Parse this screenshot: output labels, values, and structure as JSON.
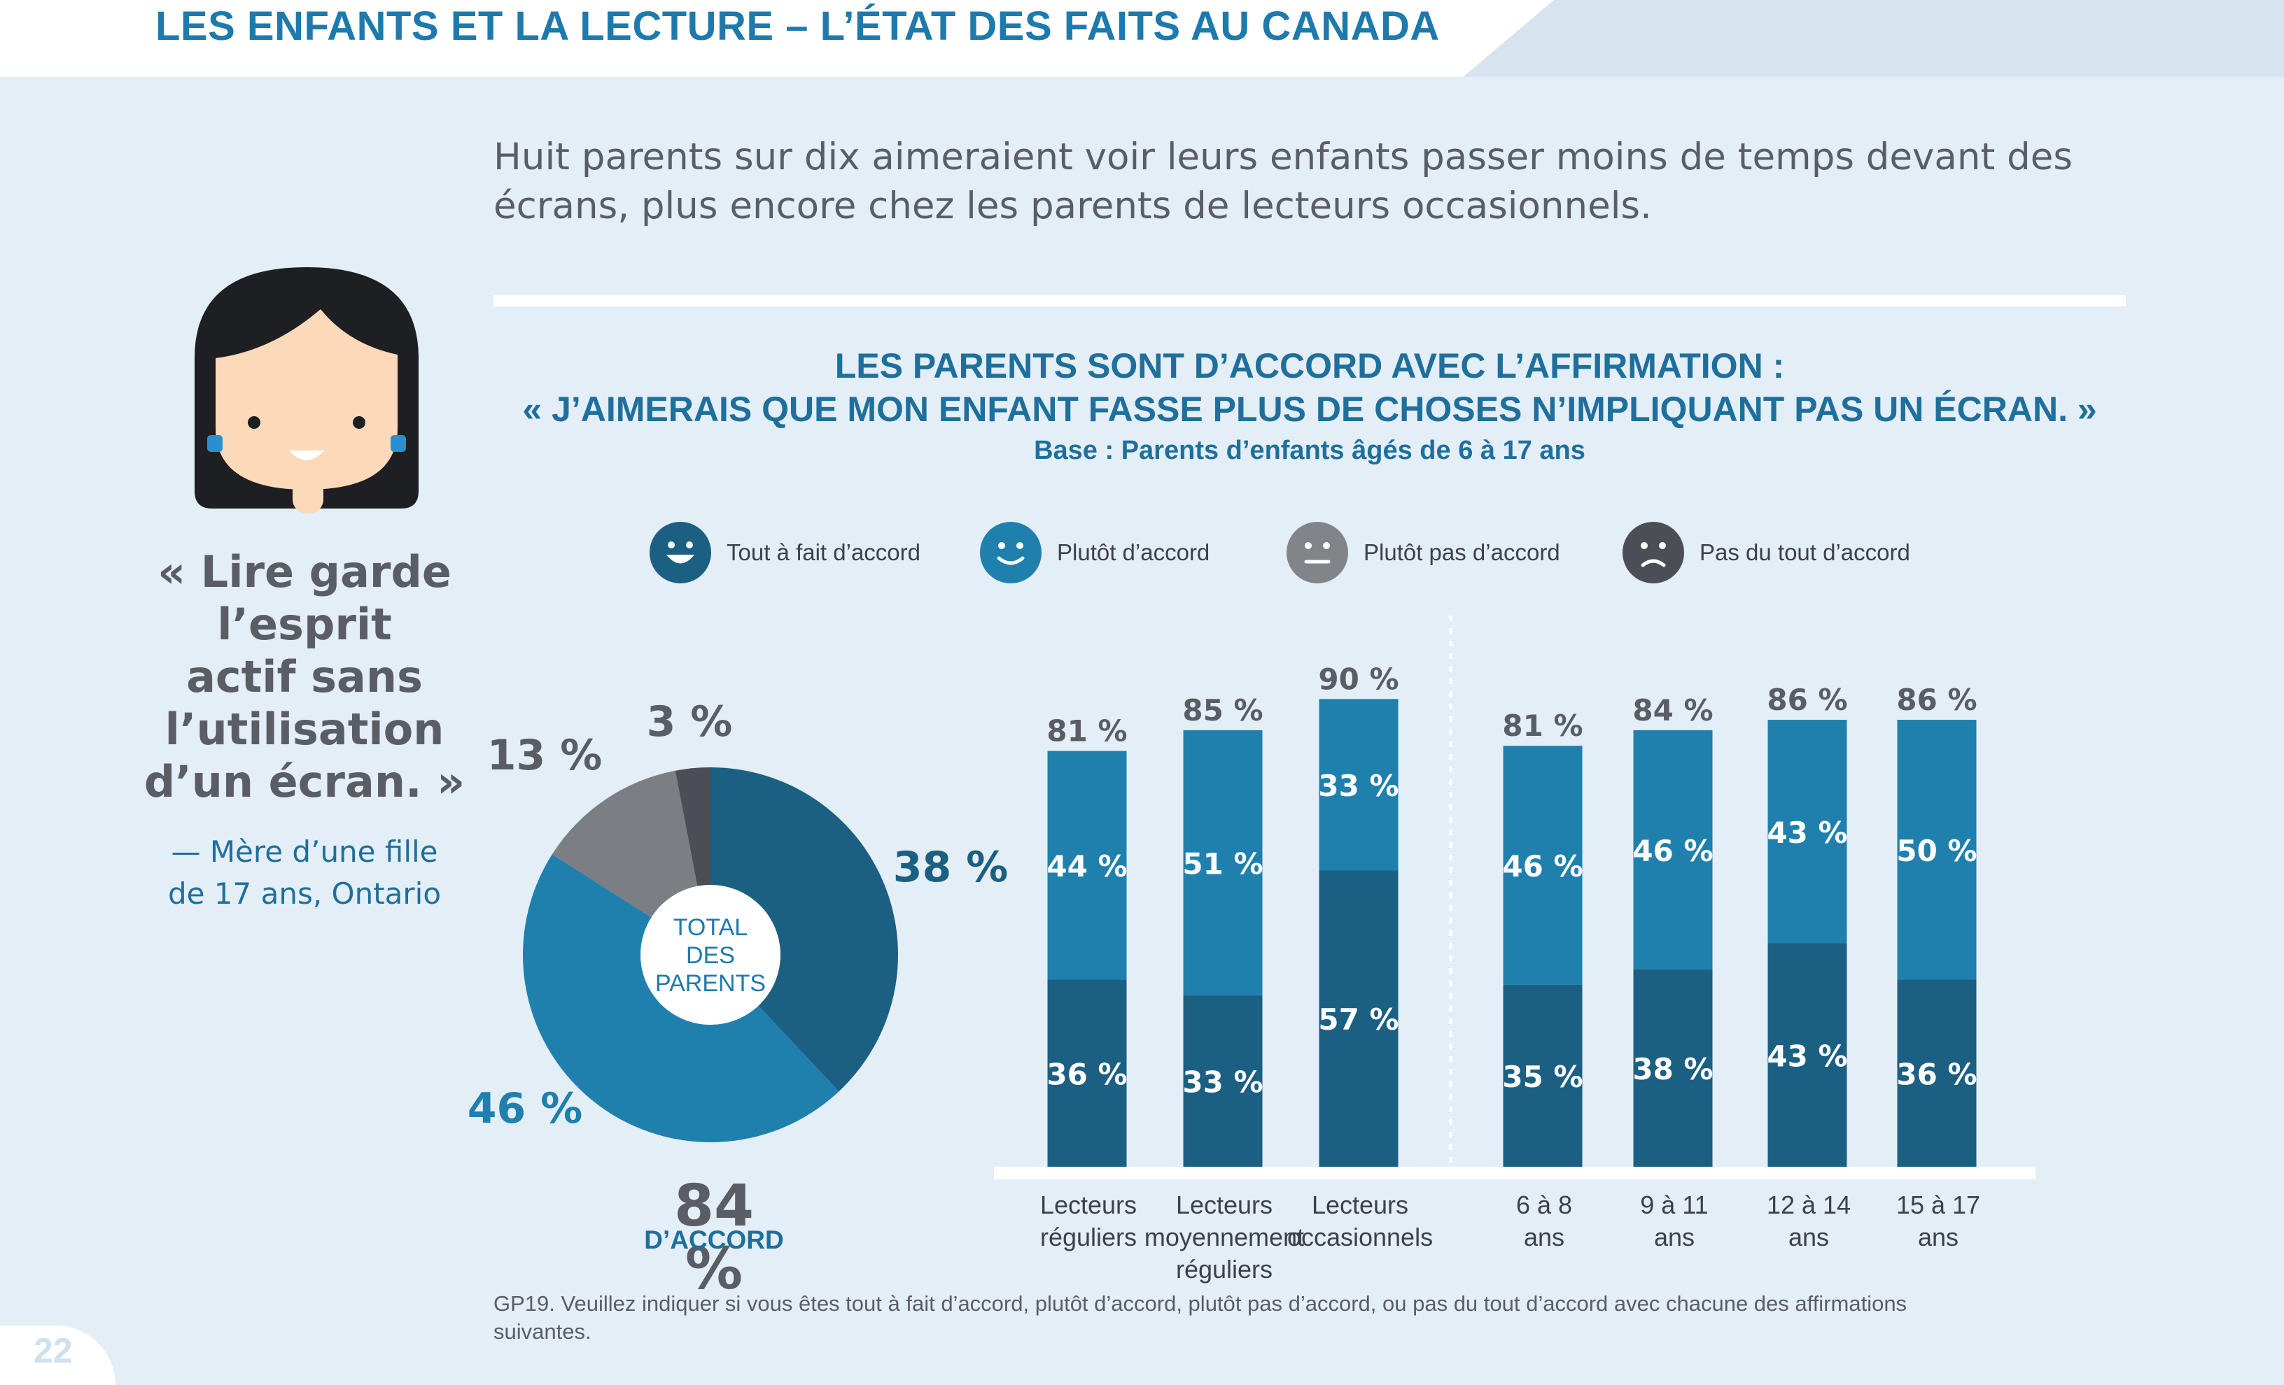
{
  "header": {
    "title": "LES ENFANTS ET LA LECTURE – L’ÉTAT DES FAITS AU CANADA"
  },
  "headline": {
    "line1": "Huit parents sur dix aimeraient voir leurs enfants passer moins de temps devant des",
    "line2": "écrans, plus encore chez les parents de lecteurs occasionnels."
  },
  "quote": {
    "line1": "« Lire garde",
    "line2": "l’esprit",
    "line3": "actif sans",
    "line4": "l’utilisation",
    "line5": "d’un écran. »",
    "attribution1": "— Mère d’une fille",
    "attribution2": "de 17 ans, Ontario"
  },
  "legend": [
    {
      "label": "Tout à fait d’accord",
      "face": "big-smile",
      "color": "#1b5f82"
    },
    {
      "label": "Plutôt d’accord",
      "face": "smile",
      "color": "#1f80ad"
    },
    {
      "label": "Plutôt pas d’accord",
      "face": "neutral",
      "color": "#818489"
    },
    {
      "label": "Pas du tout d’accord",
      "face": "frown",
      "color": "#4b4e54"
    }
  ],
  "colors": {
    "tout_a_fait": "#1b5f82",
    "plutot": "#1f80ad",
    "plutot_pas": "#7b7e83",
    "pas_du_tout": "#4b4e54",
    "accent": "#1e7aad",
    "gray_text": "#5a5d63"
  },
  "chart_data": [
    {
      "type": "pie",
      "title": "LES PARENTS SONT D’ACCORD AVEC L’AFFIRMATION :",
      "subtitle": "« J’AIMERAIS QUE MON ENFANT FASSE PLUS DE CHOSES N’IMPLIQUANT PAS UN ÉCRAN. »",
      "base": "Base : Parents d’enfants âgés de 6 à 17 ans",
      "center_label": [
        "TOTAL",
        "DES",
        "PARENTS"
      ],
      "slices": [
        {
          "name": "Tout à fait d’accord",
          "value": 38,
          "label": "38 %"
        },
        {
          "name": "Plutôt d’accord",
          "value": 46,
          "label": "46 %"
        },
        {
          "name": "Plutôt pas d’accord",
          "value": 13,
          "label": "13 %"
        },
        {
          "name": "Pas du tout d’accord",
          "value": 3,
          "label": "3 %"
        }
      ],
      "total_value": "84 %",
      "total_label": "D’ACCORD"
    },
    {
      "type": "bar",
      "stacked": true,
      "categories": [
        [
          "Lecteurs",
          "réguliers"
        ],
        [
          "Lecteurs",
          "moyennement",
          "réguliers"
        ],
        [
          "Lecteurs",
          "occasionnels"
        ],
        [
          "6 à 8",
          "ans"
        ],
        [
          "9 à 11",
          "ans"
        ],
        [
          "12 à 14",
          "ans"
        ],
        [
          "15 à 17",
          "ans"
        ]
      ],
      "group_separator_after": 3,
      "series": [
        {
          "name": "Tout à fait d’accord",
          "values": [
            36,
            33,
            57,
            35,
            38,
            43,
            36
          ],
          "labels": [
            "36 %",
            "33 %",
            "57 %",
            "35 %",
            "38 %",
            "43 %",
            "36 %"
          ]
        },
        {
          "name": "Plutôt d’accord",
          "values": [
            44,
            51,
            33,
            46,
            46,
            43,
            50
          ],
          "labels": [
            "44 %",
            "51 %",
            "33 %",
            "46 %",
            "46 %",
            "43 %",
            "50 %"
          ]
        }
      ],
      "totals": [
        81,
        85,
        90,
        81,
        84,
        86,
        86
      ],
      "total_labels": [
        "81 %",
        "85 %",
        "90 %",
        "81 %",
        "84 %",
        "86 %",
        "86 %"
      ],
      "ylim": [
        0,
        100
      ]
    }
  ],
  "footnote": {
    "line1": "GP19. Veuillez indiquer si vous êtes tout à fait d’accord, plutôt d’accord, plutôt pas d’accord, ou pas du tout d’accord avec chacune des affirmations",
    "line2": "suivantes."
  },
  "page_number": "22"
}
